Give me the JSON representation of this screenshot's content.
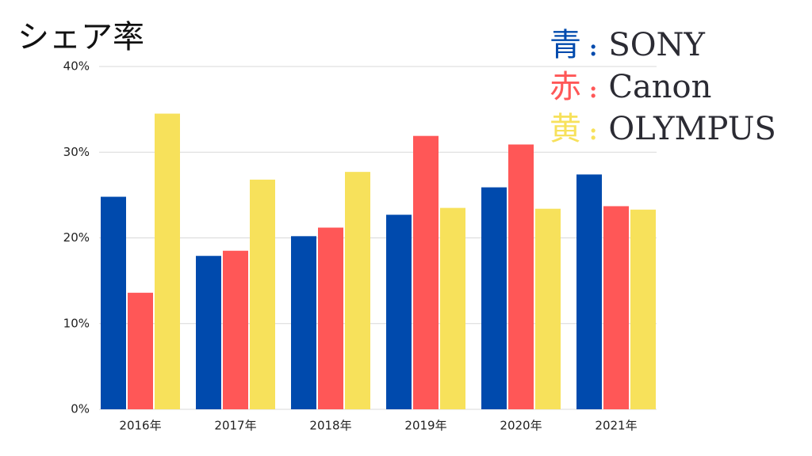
{
  "chart_data": {
    "type": "bar",
    "title": "シェア率",
    "categories": [
      "2016年",
      "2017年",
      "2018年",
      "2019年",
      "2020年",
      "2021年"
    ],
    "series": [
      {
        "name": "SONY",
        "color": "#004aad",
        "values": [
          24.8,
          17.9,
          20.2,
          22.7,
          25.9,
          27.4
        ]
      },
      {
        "name": "Canon",
        "color": "#ff5757",
        "values": [
          13.6,
          18.5,
          21.2,
          31.9,
          30.9,
          23.7
        ]
      },
      {
        "name": "OLYMPUS",
        "color": "#f7e15b",
        "values": [
          34.5,
          26.8,
          27.7,
          23.5,
          23.4,
          23.3
        ]
      }
    ],
    "legend_markers": [
      "青",
      "赤",
      "黄"
    ],
    "legend_separator": ":",
    "ylim": [
      0,
      40
    ],
    "yticks": [
      {
        "value": 0,
        "label": "0%"
      },
      {
        "value": 10,
        "label": "10%"
      },
      {
        "value": 20,
        "label": "20%"
      },
      {
        "value": 30,
        "label": "30%"
      },
      {
        "value": 40,
        "label": "40%"
      }
    ],
    "grid": true,
    "legend_position": "top-right"
  }
}
